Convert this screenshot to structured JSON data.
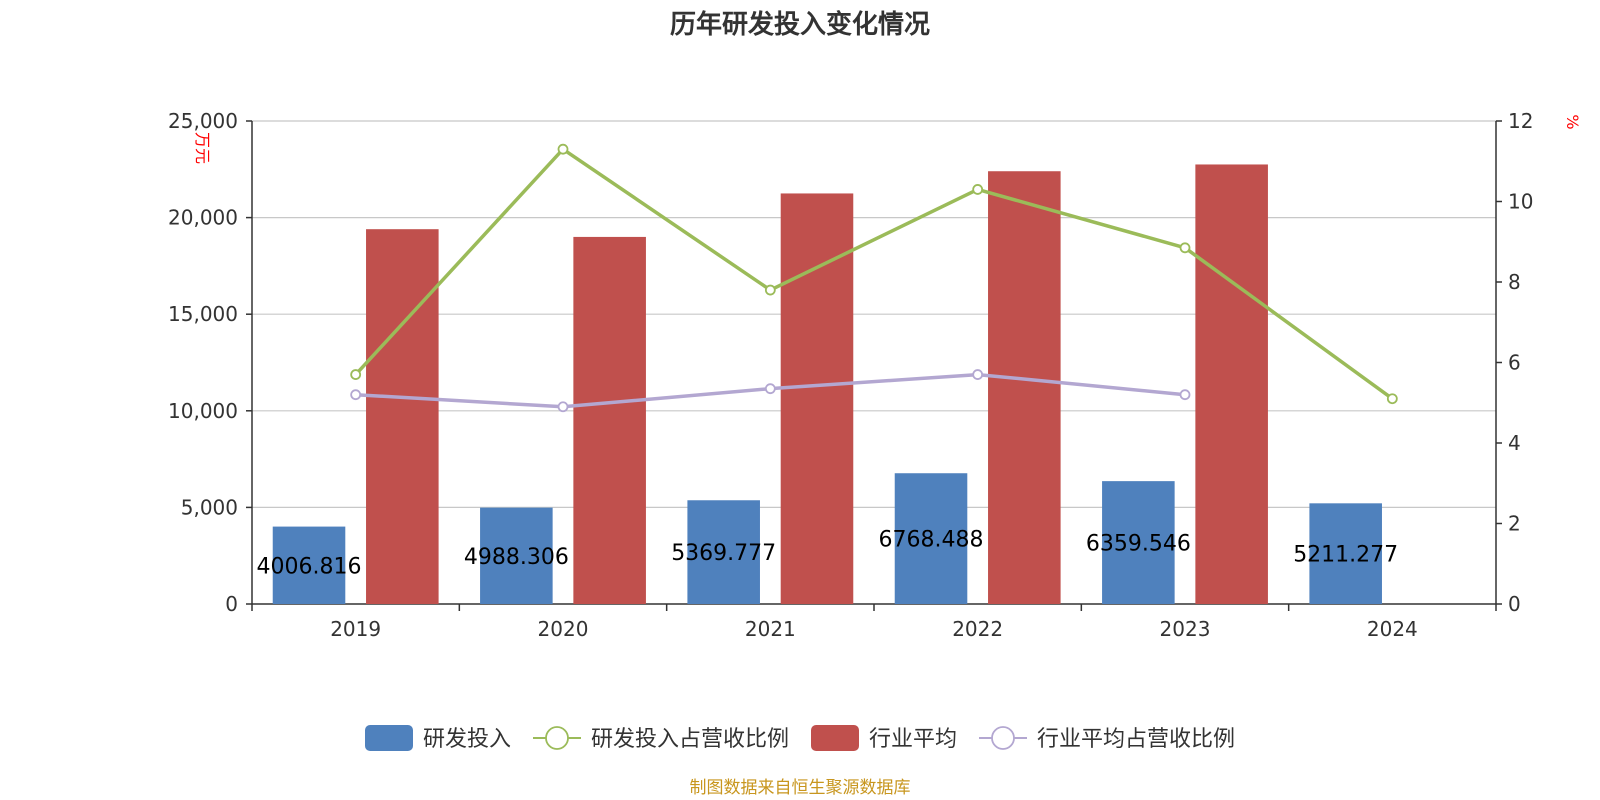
{
  "chart_data": {
    "type": "bar",
    "title": "历年研发投入变化情况",
    "categories": [
      "2019",
      "2020",
      "2021",
      "2022",
      "2023",
      "2024"
    ],
    "y_left": {
      "label": "万元",
      "ylim": [
        0,
        25000
      ],
      "ticks": [
        "0",
        "5,000",
        "10,000",
        "15,000",
        "20,000",
        "25,000"
      ]
    },
    "y_right": {
      "label": "%",
      "ylim": [
        0,
        12
      ],
      "ticks": [
        "0",
        "2",
        "4",
        "6",
        "8",
        "10",
        "12"
      ]
    },
    "grid": true,
    "legend_position": "bottom",
    "series": [
      {
        "name": "研发投入",
        "type": "bar",
        "axis": "left",
        "color": "#4f81bd",
        "values": [
          4006.816,
          4988.306,
          5369.777,
          6768.488,
          6359.546,
          5211.277
        ],
        "labels": [
          "4006.816",
          "4988.306",
          "5369.777",
          "6768.488",
          "6359.546",
          "5211.277"
        ]
      },
      {
        "name": "研发投入占营收比例",
        "type": "line",
        "axis": "right",
        "color": "#9bbb59",
        "values": [
          5.7,
          11.3,
          7.8,
          10.3,
          8.85,
          5.1
        ]
      },
      {
        "name": "行业平均",
        "type": "bar",
        "axis": "left",
        "color": "#c0504d",
        "values": [
          19400,
          19000,
          21250,
          22400,
          22750,
          null
        ]
      },
      {
        "name": "行业平均占营收比例",
        "type": "line",
        "axis": "right",
        "color": "#b3a7d1",
        "values": [
          5.2,
          4.9,
          5.35,
          5.7,
          5.2,
          null
        ]
      }
    ],
    "source": "制图数据来自恒生聚源数据库"
  }
}
